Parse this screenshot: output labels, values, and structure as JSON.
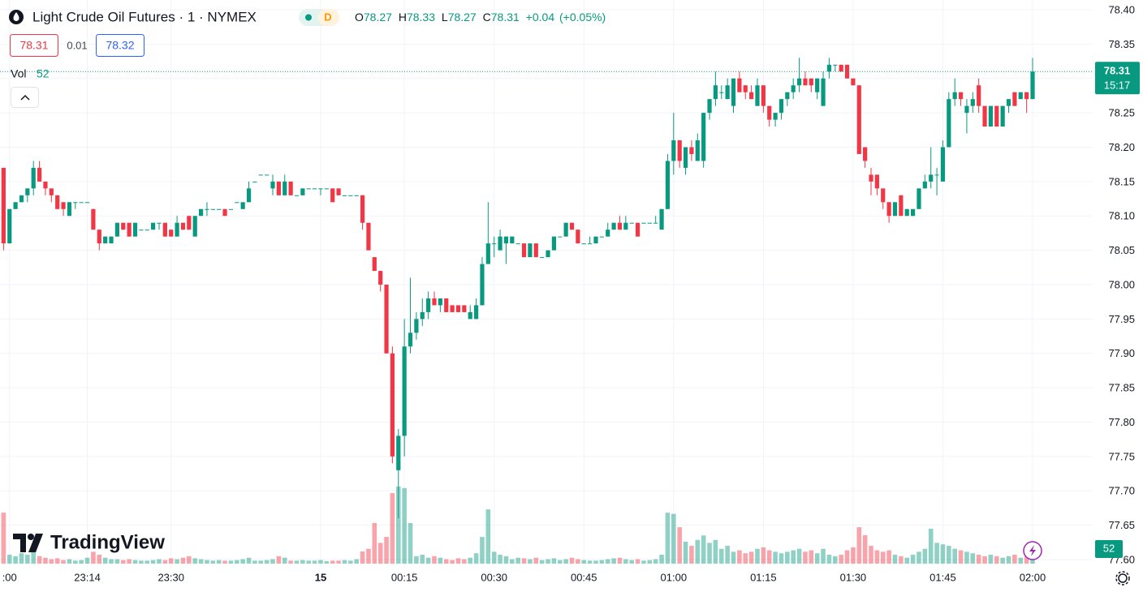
{
  "chart_data": {
    "type": "candlestick",
    "title": "Light Crude Oil Futures · 1 · NYMEX",
    "interval_badge": "D",
    "ohlc_labels": [
      "O",
      "H",
      "L",
      "C"
    ],
    "change": "+0.04",
    "change_percent": "(+0.05%)",
    "bid": 78.31,
    "spread": 0.01,
    "ask": 78.32,
    "volume_label": "Vol",
    "countdown": "15:17",
    "logo": "TradingView",
    "up_color": "#089981",
    "down_color": "#f23645",
    "grid": true,
    "ylim": [
      77.6,
      78.4
    ],
    "yticks": [
      {
        "value": 78.4,
        "label": "78.40"
      },
      78.35,
      {
        "value": 78.3,
        "label": "78.30"
      },
      78.25,
      {
        "value": 78.2,
        "label": "78.20"
      },
      78.15,
      {
        "value": 78.1,
        "label": "78.10"
      },
      78.05,
      {
        "value": 78.0,
        "label": "78.00"
      },
      77.95,
      {
        "value": 77.9,
        "label": "77.90"
      },
      77.85,
      {
        "value": 77.8,
        "label": "77.80"
      },
      77.75,
      {
        "value": 77.7,
        "label": "77.70"
      },
      77.65,
      {
        "value": 77.6,
        "label": "77.60"
      }
    ],
    "categories": [
      null,
      ":00",
      null,
      null,
      null,
      null,
      null,
      null,
      null,
      null,
      null,
      null,
      null,
      null,
      "23:14",
      null,
      null,
      null,
      null,
      null,
      null,
      null,
      null,
      null,
      null,
      null,
      null,
      null,
      "23:30",
      null,
      null,
      null,
      null,
      null,
      null,
      null,
      null,
      null,
      null,
      null,
      null,
      null,
      null,
      null,
      null,
      null,
      null,
      null,
      null,
      null,
      null,
      null,
      null,
      "15",
      null,
      null,
      null,
      null,
      null,
      null,
      null,
      null,
      null,
      null,
      null,
      null,
      null,
      "00:15",
      null,
      null,
      null,
      null,
      null,
      null,
      null,
      null,
      null,
      null,
      null,
      null,
      null,
      null,
      "00:30",
      null,
      null,
      null,
      null,
      null,
      null,
      null,
      null,
      null,
      null,
      null,
      null,
      null,
      null,
      "00:45",
      null,
      null,
      null,
      null,
      null,
      null,
      null,
      null,
      null,
      null,
      null,
      null,
      null,
      null,
      "01:00",
      null,
      null,
      null,
      null,
      null,
      null,
      null,
      null,
      null,
      null,
      null,
      null,
      null,
      null,
      "01:15",
      null,
      null,
      null,
      null,
      null,
      null,
      null,
      null,
      null,
      null,
      null,
      null,
      null,
      null,
      "01:30",
      null,
      null,
      null,
      null,
      null,
      null,
      null,
      null,
      null,
      null,
      null,
      null,
      null,
      null,
      "01:45",
      null,
      null,
      null,
      null,
      null,
      null,
      null,
      null,
      null,
      null,
      null,
      null,
      null,
      null,
      "02:00"
    ],
    "open": [
      78.17,
      78.06,
      78.11,
      78.12,
      78.13,
      78.14,
      78.17,
      78.15,
      78.14,
      78.13,
      78.12,
      78.1,
      78.12,
      78.12,
      78.12,
      78.11,
      78.08,
      78.06,
      78.06,
      78.07,
      78.09,
      78.09,
      78.07,
      78.08,
      78.08,
      78.08,
      78.09,
      78.09,
      78.08,
      78.07,
      78.09,
      78.1,
      78.07,
      78.1,
      78.11,
      78.11,
      78.11,
      78.11,
      78.11,
      78.12,
      78.11,
      78.12,
      78.15,
      78.16,
      78.16,
      78.14,
      78.15,
      78.13,
      78.15,
      78.13,
      78.13,
      78.14,
      78.14,
      78.14,
      78.14,
      78.14,
      78.14,
      78.13,
      78.13,
      78.13,
      78.13,
      78.09,
      78.04,
      78.02,
      78.0,
      77.9,
      77.73,
      77.78,
      77.91,
      77.93,
      77.95,
      77.96,
      77.98,
      77.97,
      77.98,
      77.97,
      77.97,
      77.97,
      77.95,
      77.95,
      77.97,
      78.03,
      78.06,
      78.05,
      78.06,
      78.06,
      78.06,
      78.06,
      78.04,
      78.06,
      78.04,
      78.04,
      78.05,
      78.07,
      78.07,
      78.09,
      78.08,
      78.06,
      78.06,
      78.06,
      78.07,
      78.07,
      78.08,
      78.09,
      78.08,
      78.09,
      78.09,
      78.09,
      78.09,
      78.09,
      78.08,
      78.11,
      78.18,
      78.21,
      78.17,
      78.2,
      78.18,
      78.18,
      78.25,
      78.27,
      78.28,
      78.27,
      78.26,
      78.3,
      78.29,
      78.28,
      78.26,
      78.29,
      78.26,
      78.24,
      78.25,
      78.27,
      78.28,
      78.29,
      78.3,
      78.3,
      78.28,
      78.26,
      78.31,
      78.32,
      78.32,
      78.32,
      78.3,
      78.29,
      78.2,
      78.16,
      78.16,
      78.14,
      78.12,
      78.1,
      78.13,
      78.1,
      78.1,
      78.11,
      78.14,
      78.15,
      78.16,
      78.15,
      78.2,
      78.27,
      78.28,
      78.25,
      78.26,
      78.29,
      78.26,
      78.23,
      78.26,
      78.23,
      78.26,
      78.28,
      78.27,
      78.28,
      78.27
    ],
    "high": [
      78.17,
      78.11,
      78.12,
      78.13,
      78.14,
      78.18,
      78.18,
      78.15,
      78.14,
      78.13,
      78.12,
      78.12,
      78.12,
      78.12,
      78.12,
      78.11,
      78.08,
      78.07,
      78.07,
      78.09,
      78.09,
      78.09,
      78.09,
      78.08,
      78.08,
      78.09,
      78.09,
      78.09,
      78.08,
      78.1,
      78.09,
      78.1,
      78.1,
      78.11,
      78.12,
      78.11,
      78.11,
      78.11,
      78.11,
      78.12,
      78.12,
      78.15,
      78.15,
      78.16,
      78.16,
      78.16,
      78.15,
      78.16,
      78.15,
      78.13,
      78.14,
      78.14,
      78.14,
      78.14,
      78.14,
      78.14,
      78.14,
      78.13,
      78.13,
      78.13,
      78.13,
      78.09,
      78.04,
      78.02,
      78.0,
      77.91,
      77.79,
      77.95,
      78.01,
      77.96,
      77.98,
      77.99,
      77.99,
      77.98,
      77.98,
      77.97,
      77.97,
      77.97,
      77.97,
      77.98,
      78.04,
      78.12,
      78.07,
      78.08,
      78.07,
      78.07,
      78.06,
      78.06,
      78.06,
      78.06,
      78.04,
      78.05,
      78.07,
      78.07,
      78.09,
      78.09,
      78.08,
      78.06,
      78.07,
      78.07,
      78.07,
      78.09,
      78.09,
      78.1,
      78.1,
      78.09,
      78.09,
      78.09,
      78.09,
      78.1,
      78.11,
      78.19,
      78.25,
      78.21,
      78.2,
      78.21,
      78.22,
      78.25,
      78.27,
      78.31,
      78.29,
      78.3,
      78.3,
      78.31,
      78.29,
      78.29,
      78.3,
      78.29,
      78.26,
      78.25,
      78.27,
      78.28,
      78.3,
      78.33,
      78.31,
      78.3,
      78.3,
      78.31,
      78.33,
      78.32,
      78.32,
      78.32,
      78.3,
      78.29,
      78.2,
      78.17,
      78.16,
      78.14,
      78.12,
      78.12,
      78.13,
      78.11,
      78.11,
      78.14,
      78.16,
      78.2,
      78.17,
      78.21,
      78.28,
      78.3,
      78.28,
      78.27,
      78.28,
      78.3,
      78.26,
      78.26,
      78.26,
      78.26,
      78.27,
      78.28,
      78.28,
      78.28,
      78.33
    ],
    "low": [
      78.05,
      78.06,
      78.11,
      78.12,
      78.12,
      78.13,
      78.15,
      78.13,
      78.12,
      78.11,
      78.1,
      78.1,
      78.11,
      78.12,
      78.12,
      78.08,
      78.05,
      78.06,
      78.06,
      78.07,
      78.08,
      78.07,
      78.07,
      78.08,
      78.08,
      78.08,
      78.08,
      78.07,
      78.07,
      78.07,
      78.08,
      78.08,
      78.07,
      78.1,
      78.1,
      78.11,
      78.11,
      78.1,
      78.11,
      78.12,
      78.11,
      78.12,
      78.15,
      78.16,
      78.16,
      78.13,
      78.13,
      78.13,
      78.13,
      78.13,
      78.13,
      78.14,
      78.14,
      78.13,
      78.14,
      78.12,
      78.13,
      78.13,
      78.13,
      78.13,
      78.08,
      78.05,
      78.02,
      77.99,
      77.9,
      77.74,
      77.66,
      77.75,
      77.9,
      77.92,
      77.94,
      77.95,
      77.97,
      77.96,
      77.96,
      77.96,
      77.96,
      77.96,
      77.95,
      77.95,
      77.97,
      78.03,
      78.04,
      78.05,
      78.03,
      78.06,
      78.06,
      78.04,
      78.04,
      78.04,
      78.04,
      78.04,
      78.05,
      78.07,
      78.07,
      78.08,
      78.06,
      78.06,
      78.06,
      78.06,
      78.07,
      78.07,
      78.08,
      78.08,
      78.08,
      78.09,
      78.07,
      78.09,
      78.09,
      78.09,
      78.08,
      78.11,
      78.16,
      78.17,
      78.16,
      78.18,
      78.18,
      78.17,
      78.24,
      78.26,
      78.27,
      78.27,
      78.25,
      78.28,
      78.27,
      78.27,
      78.26,
      78.25,
      78.23,
      78.23,
      78.24,
      78.26,
      78.27,
      78.28,
      78.29,
      78.28,
      78.27,
      78.26,
      78.3,
      78.31,
      78.31,
      78.3,
      78.29,
      78.19,
      78.17,
      78.13,
      78.13,
      78.11,
      78.09,
      78.1,
      78.1,
      78.1,
      78.1,
      78.11,
      78.14,
      78.14,
      78.13,
      78.15,
      78.2,
      78.26,
      78.26,
      78.22,
      78.25,
      78.25,
      78.23,
      78.23,
      78.23,
      78.23,
      78.25,
      78.26,
      78.27,
      78.25,
      78.27
    ],
    "close": [
      78.06,
      78.11,
      78.12,
      78.13,
      78.14,
      78.17,
      78.15,
      78.14,
      78.13,
      78.11,
      78.11,
      78.12,
      78.12,
      78.12,
      78.12,
      78.08,
      78.06,
      78.07,
      78.07,
      78.09,
      78.08,
      78.07,
      78.09,
      78.08,
      78.08,
      78.09,
      78.09,
      78.07,
      78.07,
      78.09,
      78.08,
      78.08,
      78.1,
      78.11,
      78.11,
      78.11,
      78.11,
      78.1,
      78.11,
      78.12,
      78.12,
      78.14,
      78.15,
      78.16,
      78.16,
      78.15,
      78.13,
      78.15,
      78.13,
      78.13,
      78.14,
      78.14,
      78.14,
      78.14,
      78.14,
      78.12,
      78.13,
      78.13,
      78.13,
      78.13,
      78.09,
      78.05,
      78.02,
      78.0,
      77.9,
      77.75,
      77.78,
      77.91,
      77.93,
      77.95,
      77.96,
      77.98,
      77.97,
      77.98,
      77.96,
      77.96,
      77.96,
      77.96,
      77.96,
      77.97,
      78.03,
      78.06,
      78.06,
      78.07,
      78.07,
      78.07,
      78.06,
      78.04,
      78.06,
      78.04,
      78.04,
      78.05,
      78.07,
      78.07,
      78.09,
      78.08,
      78.06,
      78.06,
      78.06,
      78.07,
      78.07,
      78.08,
      78.09,
      78.08,
      78.09,
      78.09,
      78.07,
      78.09,
      78.09,
      78.09,
      78.11,
      78.18,
      78.21,
      78.18,
      78.2,
      78.19,
      78.21,
      78.25,
      78.27,
      78.29,
      78.28,
      78.29,
      78.3,
      78.28,
      78.28,
      78.27,
      78.29,
      78.26,
      78.24,
      78.25,
      78.27,
      78.28,
      78.29,
      78.3,
      78.29,
      78.29,
      78.3,
      78.3,
      78.32,
      78.32,
      78.31,
      78.3,
      78.29,
      78.19,
      78.18,
      78.15,
      78.14,
      78.12,
      78.1,
      78.12,
      78.1,
      78.11,
      78.11,
      78.14,
      78.15,
      78.16,
      78.16,
      78.2,
      78.27,
      78.28,
      78.27,
      78.26,
      78.27,
      78.26,
      78.23,
      78.26,
      78.23,
      78.26,
      78.27,
      78.26,
      78.28,
      78.27,
      78.31
    ],
    "volume": [
      172,
      30,
      25,
      35,
      30,
      45,
      25,
      20,
      15,
      18,
      12,
      15,
      10,
      12,
      20,
      40,
      30,
      20,
      15,
      15,
      12,
      15,
      12,
      10,
      10,
      12,
      15,
      12,
      18,
      15,
      20,
      25,
      18,
      15,
      12,
      10,
      12,
      10,
      10,
      12,
      15,
      20,
      10,
      10,
      12,
      15,
      25,
      20,
      10,
      10,
      12,
      10,
      10,
      12,
      8,
      10,
      10,
      12,
      10,
      15,
      41,
      50,
      137,
      70,
      90,
      238,
      260,
      255,
      137,
      25,
      30,
      20,
      25,
      20,
      15,
      12,
      18,
      15,
      20,
      35,
      90,
      183,
      40,
      30,
      25,
      15,
      20,
      18,
      15,
      20,
      12,
      15,
      18,
      12,
      15,
      20,
      15,
      12,
      10,
      10,
      12,
      15,
      18,
      20,
      15,
      12,
      15,
      10,
      12,
      15,
      30,
      172,
      168,
      123,
      74,
      60,
      80,
      95,
      70,
      80,
      50,
      60,
      40,
      45,
      35,
      40,
      50,
      55,
      45,
      40,
      35,
      40,
      45,
      50,
      40,
      45,
      35,
      50,
      30,
      25,
      30,
      45,
      55,
      123,
      96,
      60,
      45,
      40,
      45,
      30,
      25,
      20,
      30,
      40,
      50,
      118,
      70,
      65,
      60,
      50,
      45,
      40,
      35,
      30,
      25,
      30,
      25,
      20,
      25,
      30,
      20,
      25,
      52
    ]
  }
}
